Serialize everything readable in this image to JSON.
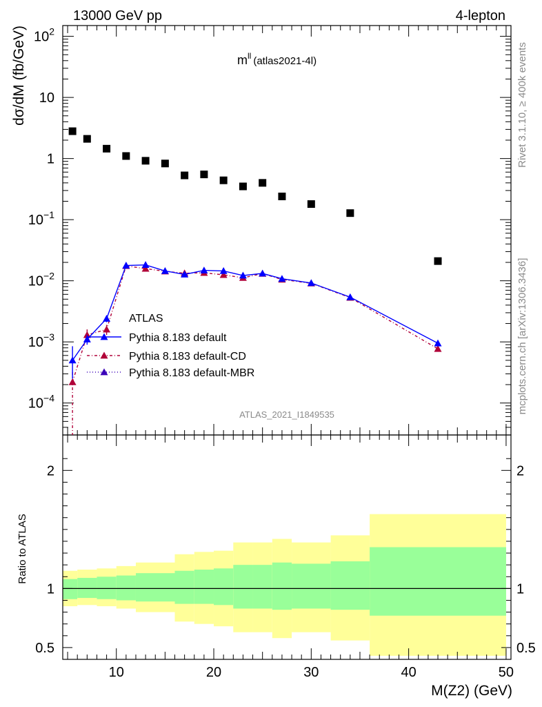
{
  "header": {
    "energy_label": "13000 GeV pp",
    "process_label": "4-lepton",
    "observable_main": "m",
    "observable_sup": "ll",
    "observable_sub": "(atlas2021-4l)",
    "rivet_label": "Rivet 3.1.10, ≥ 400k events",
    "mcplots_label": "mcplots.cern.ch [arXiv:1306.3436]",
    "analysis_id": "ATLAS_2021_I1849535"
  },
  "colors": {
    "data": "#000000",
    "default": "#0000ff",
    "cd": "#b00038",
    "mbr": "#3a00b8",
    "band_inner": "#99ff99",
    "band_outer": "#ffff99"
  },
  "chart_data": [
    {
      "type": "scatter",
      "panel": "main",
      "title": "m^ll (atlas2021-4l)",
      "xlabel": "M(Z2) (GeV)",
      "ylabel": "dσ/dM (fb/GeV)",
      "xlim": [
        4.5,
        50.5
      ],
      "ylim": [
        3e-05,
        150
      ],
      "yscale": "log",
      "ytick_labels": [
        {
          "value": 100,
          "base": "10",
          "exp": "2"
        },
        {
          "value": 10,
          "base": "10",
          "exp": ""
        },
        {
          "value": 1,
          "base": "1",
          "exp": ""
        },
        {
          "value": 0.1,
          "base": "10",
          "exp": "−1"
        },
        {
          "value": 0.01,
          "base": "10",
          "exp": "−2"
        },
        {
          "value": 0.001,
          "base": "10",
          "exp": "−3"
        },
        {
          "value": 0.0001,
          "base": "10",
          "exp": "−4"
        }
      ],
      "legend_position": "center-left",
      "series": [
        {
          "name": "ATLAS",
          "style": "data",
          "x": [
            5.5,
            7,
            9,
            11,
            13,
            15,
            17,
            19,
            21,
            23,
            25,
            27,
            30,
            34,
            43
          ],
          "y": [
            2.8,
            2.1,
            1.45,
            1.1,
            0.92,
            0.83,
            0.53,
            0.55,
            0.44,
            0.35,
            0.4,
            0.24,
            0.18,
            0.128,
            0.021
          ]
        },
        {
          "name": "Pythia 8.183 default",
          "style": "default",
          "x": [
            5.5,
            7,
            9,
            11,
            13,
            15,
            17,
            19,
            21,
            23,
            25,
            27,
            30,
            34,
            43
          ],
          "y": [
            0.0005,
            0.0011,
            0.0024,
            0.0178,
            0.0182,
            0.0145,
            0.0127,
            0.0148,
            0.0145,
            0.0122,
            0.0132,
            0.0108,
            0.0092,
            0.0054,
            0.00095
          ],
          "err_low": [
            0.00025,
            0.0002,
            0.0003,
            0,
            0,
            0,
            0,
            0,
            0,
            0,
            0,
            0,
            0,
            0,
            0
          ],
          "err_high": [
            0.00035,
            0.0002,
            0.0003,
            0,
            0,
            0,
            0,
            0,
            0,
            0,
            0,
            0,
            0,
            0,
            0
          ]
        },
        {
          "name": "Pythia 8.183 default-CD",
          "style": "cd",
          "x": [
            5.5,
            7,
            9,
            11,
            13,
            15,
            17,
            19,
            21,
            23,
            25,
            27,
            30,
            34,
            43
          ],
          "y": [
            0.00022,
            0.0013,
            0.0016,
            0.0175,
            0.0158,
            0.0143,
            0.0133,
            0.0135,
            0.0125,
            0.0112,
            0.0131,
            0.0105,
            0.0091,
            0.0053,
            0.00077
          ],
          "err_low": [
            0.00019,
            0.0003,
            0.0003,
            0,
            0,
            0,
            0,
            0,
            0,
            0,
            0,
            0,
            0,
            0,
            0
          ],
          "err_high": [
            0.0001,
            0.0003,
            0.0003,
            0,
            0,
            0,
            0,
            0,
            0,
            0,
            0,
            0,
            0,
            0,
            0
          ]
        },
        {
          "name": "Pythia 8.183 default-MBR",
          "style": "mbr",
          "x": [],
          "y": []
        }
      ]
    },
    {
      "type": "area",
      "panel": "ratio",
      "xlabel": "M(Z2) (GeV)",
      "ylabel": "Ratio to ATLAS",
      "xlim": [
        4.5,
        50.5
      ],
      "ylim": [
        0.4,
        2.3
      ],
      "yticks": [
        0.5,
        1,
        2
      ],
      "ytick_labels": [
        "0.5",
        "1",
        "2"
      ],
      "xticks": [
        10,
        20,
        30,
        40,
        50
      ],
      "xtick_labels": [
        "10",
        "20",
        "30",
        "40",
        "50"
      ],
      "reference_line": 1,
      "bins": [
        {
          "xlo": 4.5,
          "xhi": 6,
          "inner": [
            0.91,
            1.08
          ],
          "outer": [
            0.85,
            1.15
          ]
        },
        {
          "xlo": 6,
          "xhi": 8,
          "inner": [
            0.92,
            1.09
          ],
          "outer": [
            0.86,
            1.16
          ]
        },
        {
          "xlo": 8,
          "xhi": 10,
          "inner": [
            0.91,
            1.1
          ],
          "outer": [
            0.85,
            1.17
          ]
        },
        {
          "xlo": 10,
          "xhi": 12,
          "inner": [
            0.9,
            1.11
          ],
          "outer": [
            0.83,
            1.19
          ]
        },
        {
          "xlo": 12,
          "xhi": 16,
          "inner": [
            0.89,
            1.13
          ],
          "outer": [
            0.8,
            1.22
          ]
        },
        {
          "xlo": 16,
          "xhi": 18,
          "inner": [
            0.87,
            1.15
          ],
          "outer": [
            0.72,
            1.29
          ]
        },
        {
          "xlo": 18,
          "xhi": 20,
          "inner": [
            0.87,
            1.16
          ],
          "outer": [
            0.7,
            1.31
          ]
        },
        {
          "xlo": 20,
          "xhi": 22,
          "inner": [
            0.86,
            1.17
          ],
          "outer": [
            0.68,
            1.32
          ]
        },
        {
          "xlo": 22,
          "xhi": 24,
          "inner": [
            0.83,
            1.2
          ],
          "outer": [
            0.63,
            1.39
          ]
        },
        {
          "xlo": 24,
          "xhi": 26,
          "inner": [
            0.83,
            1.2
          ],
          "outer": [
            0.63,
            1.39
          ]
        },
        {
          "xlo": 26,
          "xhi": 28,
          "inner": [
            0.82,
            1.22
          ],
          "outer": [
            0.58,
            1.42
          ]
        },
        {
          "xlo": 28,
          "xhi": 32,
          "inner": [
            0.83,
            1.21
          ],
          "outer": [
            0.63,
            1.39
          ]
        },
        {
          "xlo": 32,
          "xhi": 36,
          "inner": [
            0.82,
            1.23
          ],
          "outer": [
            0.56,
            1.45
          ]
        },
        {
          "xlo": 36,
          "xhi": 50,
          "inner": [
            0.77,
            1.35
          ],
          "outer": [
            0.43,
            1.63
          ]
        }
      ]
    }
  ]
}
